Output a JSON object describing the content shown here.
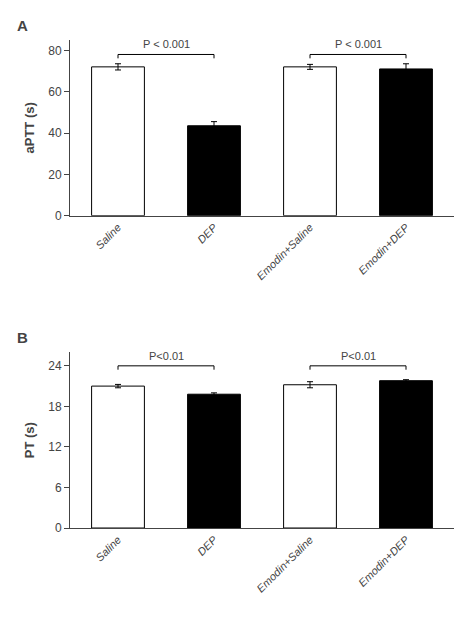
{
  "chart_data": [
    {
      "type": "bar",
      "title": "A",
      "categories": [
        "Saline",
        "DEP",
        "Emodin+Saline",
        "Emodin+DEP"
      ],
      "values": [
        72.0,
        43.5,
        72.0,
        71.0
      ],
      "errors": [
        1.5,
        2.0,
        1.2,
        2.5
      ],
      "colors": [
        "white",
        "black",
        "white",
        "black"
      ],
      "ylabel": "aPTT (s)",
      "ylim": [
        0,
        85
      ],
      "yticks": [
        0,
        20,
        40,
        60,
        80
      ],
      "grid": false,
      "annotations": [
        {
          "from": "Saline",
          "to": "DEP",
          "y": 78,
          "label": "P < 0.001"
        },
        {
          "from": "Emodin+Saline",
          "to": "Emodin+DEP",
          "y": 78,
          "label": "P < 0.001"
        }
      ]
    },
    {
      "type": "bar",
      "title": "B",
      "categories": [
        "Saline",
        "DEP",
        "Emodin+Saline",
        "Emodin+DEP"
      ],
      "values": [
        21.0,
        19.8,
        21.2,
        21.8
      ],
      "errors": [
        0.25,
        0.2,
        0.45,
        0.15
      ],
      "colors": [
        "white",
        "black",
        "white",
        "black"
      ],
      "ylabel": "PT (s)",
      "ylim": [
        0,
        26
      ],
      "yticks": [
        0,
        6,
        12,
        18,
        24
      ],
      "grid": false,
      "annotations": [
        {
          "from": "Saline",
          "to": "DEP",
          "y": 24.0,
          "label": "P<0.01"
        },
        {
          "from": "Emodin+Saline",
          "to": "Emodin+DEP",
          "y": 24.0,
          "label": "P<0.01"
        }
      ]
    }
  ]
}
